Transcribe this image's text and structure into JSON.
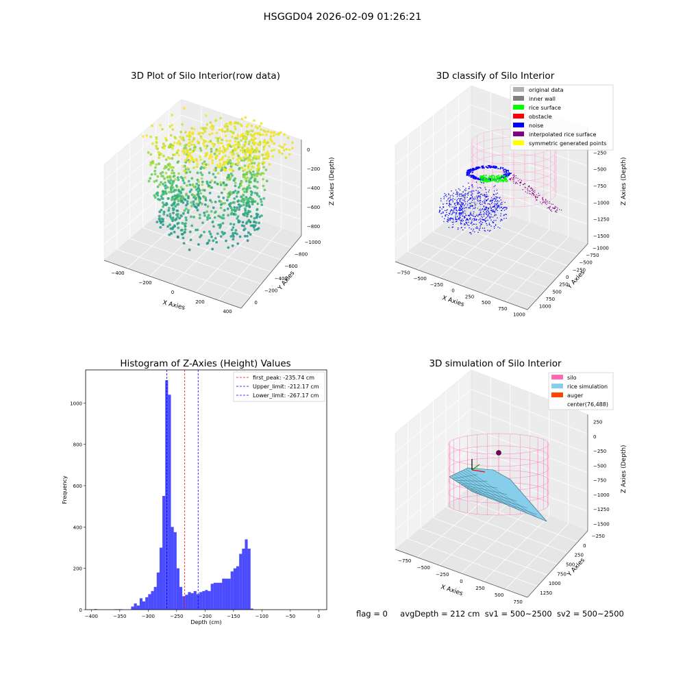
{
  "suptitle": "HSGGD04 2026-02-09 01:26:21",
  "footer": {
    "flag": "flag = 0",
    "avg_depth": "avgDepth = 212 cm",
    "sv1": "sv1 = 500~2500",
    "sv2": "sv2 = 500~2500"
  },
  "panels": {
    "raw": {
      "title": "3D Plot of Silo Interior(row data)",
      "xlabel": "X Axies",
      "ylabel": "Y Axies",
      "zlabel": "Z Axies (Depth)",
      "xticks": [
        "−400",
        "−200",
        "0",
        "200",
        "400"
      ],
      "yticks": [
        "0",
        "−200",
        "−400",
        "−600",
        "−800",
        "−1000"
      ],
      "zticks": [
        "0",
        "−200",
        "−400",
        "−600",
        "−800"
      ]
    },
    "classify": {
      "title": "3D classify of Silo Interior",
      "xlabel": "X Axies",
      "ylabel": "Y Axies",
      "zlabel": "Z Axies (Depth)",
      "xticks": [
        "−750",
        "−500",
        "−250",
        "0",
        "250",
        "500",
        "750",
        "1000"
      ],
      "yticks": [
        "1000",
        "750",
        "500",
        "250",
        "0",
        "−250",
        "−500",
        "−750",
        "−1000"
      ],
      "zticks": [
        "0",
        "−250",
        "−500",
        "−750",
        "−1000",
        "−1250",
        "−1500"
      ],
      "legend": [
        {
          "label": "original data",
          "color": "#b0b0b0"
        },
        {
          "label": "inner wall",
          "color": "#808080"
        },
        {
          "label": "rice surface",
          "color": "#00ff00"
        },
        {
          "label": "obstacle",
          "color": "#ff0000"
        },
        {
          "label": "noise",
          "color": "#0000ff"
        },
        {
          "label": "interpolated rice surface",
          "color": "#800080"
        },
        {
          "label": "symmetric generated points",
          "color": "#ffff00"
        }
      ]
    },
    "simulation": {
      "title": "3D simulation of Silo Interior",
      "xlabel": "X Axies",
      "ylabel": "Y Axies",
      "zlabel": "Z Axies (Depth)",
      "xticks": [
        "−750",
        "−500",
        "−250",
        "0",
        "250",
        "500",
        "750"
      ],
      "yticks": [
        "1250",
        "1000",
        "750",
        "500",
        "250",
        "0",
        "−250"
      ],
      "zticks": [
        "250",
        "0",
        "−250",
        "−500",
        "−750",
        "−1000",
        "−1250",
        "−1500"
      ],
      "legend": [
        {
          "label": "silo",
          "color": "#ff69b4"
        },
        {
          "label": "rice simulation",
          "color": "#87ceeb"
        },
        {
          "label": "auger",
          "color": "#ff4500"
        },
        {
          "label": "center(76,488)",
          "color": "none"
        }
      ]
    }
  },
  "chart_data": {
    "type": "bar",
    "title": "Histogram of Z-Axies (Height) Values",
    "xlabel": "Depth (cm)",
    "ylabel": "Frequency",
    "xlim": [
      -410,
      14
    ],
    "ylim": [
      0,
      1160
    ],
    "xticks": [
      -400,
      -350,
      -300,
      -250,
      -200,
      -150,
      -100,
      -50,
      0
    ],
    "yticks": [
      0,
      200,
      400,
      600,
      800,
      1000
    ],
    "bar_color": "#0000ff",
    "bin_width": 5,
    "bin_start": -395,
    "values": [
      3,
      0,
      0,
      0,
      0,
      0,
      0,
      2,
      2,
      2,
      0,
      0,
      0,
      15,
      30,
      20,
      55,
      40,
      60,
      75,
      90,
      110,
      180,
      300,
      550,
      1110,
      1040,
      400,
      375,
      200,
      110,
      65,
      72,
      85,
      80,
      90,
      75,
      85,
      90,
      95,
      90,
      125,
      130,
      130,
      130,
      150,
      150,
      150,
      185,
      200,
      210,
      270,
      295,
      340,
      295,
      5
    ],
    "vlines": [
      {
        "x": -235.74,
        "color": "#ff0000",
        "label": "first_peak: -235.74 cm"
      },
      {
        "x": -212.17,
        "color": "#0000ff",
        "label": "Upper_limit: -212.17 cm"
      },
      {
        "x": -267.17,
        "color": "#0000ff",
        "label": "Lower_limit: -267.17 cm"
      }
    ]
  }
}
